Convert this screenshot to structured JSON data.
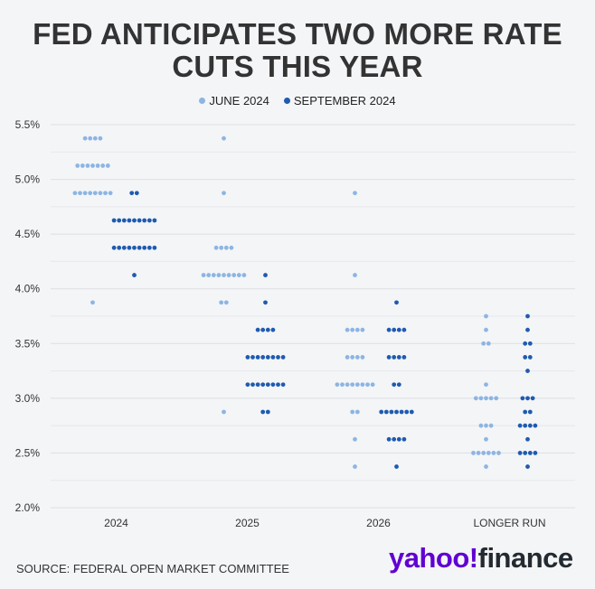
{
  "title": "FED ANTICIPATES TWO MORE RATE CUTS THIS YEAR",
  "source": "SOURCE: FEDERAL OPEN MARKET COMMITTEE",
  "logo": {
    "yahoo": "yahoo!",
    "finance": "finance"
  },
  "colors": {
    "june": "#8db5e3",
    "september": "#1f5bb0"
  },
  "chart_data": {
    "type": "scatter",
    "title": "FED ANTICIPATES TWO MORE RATE CUTS THIS YEAR",
    "categories": [
      "2024",
      "2025",
      "2026",
      "LONGER RUN"
    ],
    "y_ticks": [
      "5.5%",
      "5.0%",
      "4.5%",
      "4.0%",
      "3.5%",
      "3.0%",
      "2.5%",
      "2.0%"
    ],
    "ylim": [
      2.0,
      5.5
    ],
    "grid": true,
    "legend_position": "top-center",
    "series": [
      {
        "name": "JUNE 2024",
        "dots": [
          {
            "category": "2024",
            "counts": [
              [
                5.375,
                4
              ],
              [
                5.125,
                7
              ],
              [
                4.875,
                8
              ],
              [
                3.875,
                1
              ]
            ]
          },
          {
            "category": "2025",
            "counts": [
              [
                5.375,
                1
              ],
              [
                4.875,
                1
              ],
              [
                4.375,
                4
              ],
              [
                4.125,
                9
              ],
              [
                3.875,
                2
              ],
              [
                2.875,
                1
              ]
            ]
          },
          {
            "category": "2026",
            "counts": [
              [
                4.875,
                1
              ],
              [
                4.125,
                1
              ],
              [
                3.625,
                4
              ],
              [
                3.375,
                4
              ],
              [
                3.125,
                8
              ],
              [
                2.875,
                2
              ],
              [
                2.625,
                1
              ],
              [
                2.375,
                1
              ]
            ]
          },
          {
            "category": "LONGER RUN",
            "counts": [
              [
                3.75,
                1
              ],
              [
                3.625,
                1
              ],
              [
                3.5,
                2
              ],
              [
                3.125,
                1
              ],
              [
                3.0,
                5
              ],
              [
                2.75,
                3
              ],
              [
                2.625,
                1
              ],
              [
                2.5,
                6
              ],
              [
                2.375,
                1
              ]
            ]
          }
        ]
      },
      {
        "name": "SEPTEMBER 2024",
        "dots": [
          {
            "category": "2024",
            "counts": [
              [
                4.875,
                2
              ],
              [
                4.625,
                9
              ],
              [
                4.375,
                9
              ],
              [
                4.125,
                1
              ]
            ]
          },
          {
            "category": "2025",
            "counts": [
              [
                4.125,
                1
              ],
              [
                3.875,
                1
              ],
              [
                3.625,
                4
              ],
              [
                3.375,
                8
              ],
              [
                3.125,
                8
              ],
              [
                2.875,
                2
              ]
            ]
          },
          {
            "category": "2026",
            "counts": [
              [
                3.875,
                1
              ],
              [
                3.625,
                4
              ],
              [
                3.375,
                4
              ],
              [
                3.125,
                2
              ],
              [
                2.875,
                7
              ],
              [
                2.625,
                4
              ],
              [
                2.375,
                1
              ]
            ]
          },
          {
            "category": "LONGER RUN",
            "counts": [
              [
                3.75,
                1
              ],
              [
                3.625,
                1
              ],
              [
                3.5,
                2
              ],
              [
                3.375,
                2
              ],
              [
                3.25,
                1
              ],
              [
                3.0,
                3
              ],
              [
                2.875,
                2
              ],
              [
                2.75,
                4
              ],
              [
                2.625,
                1
              ],
              [
                2.5,
                4
              ],
              [
                2.375,
                1
              ]
            ]
          }
        ]
      }
    ]
  }
}
